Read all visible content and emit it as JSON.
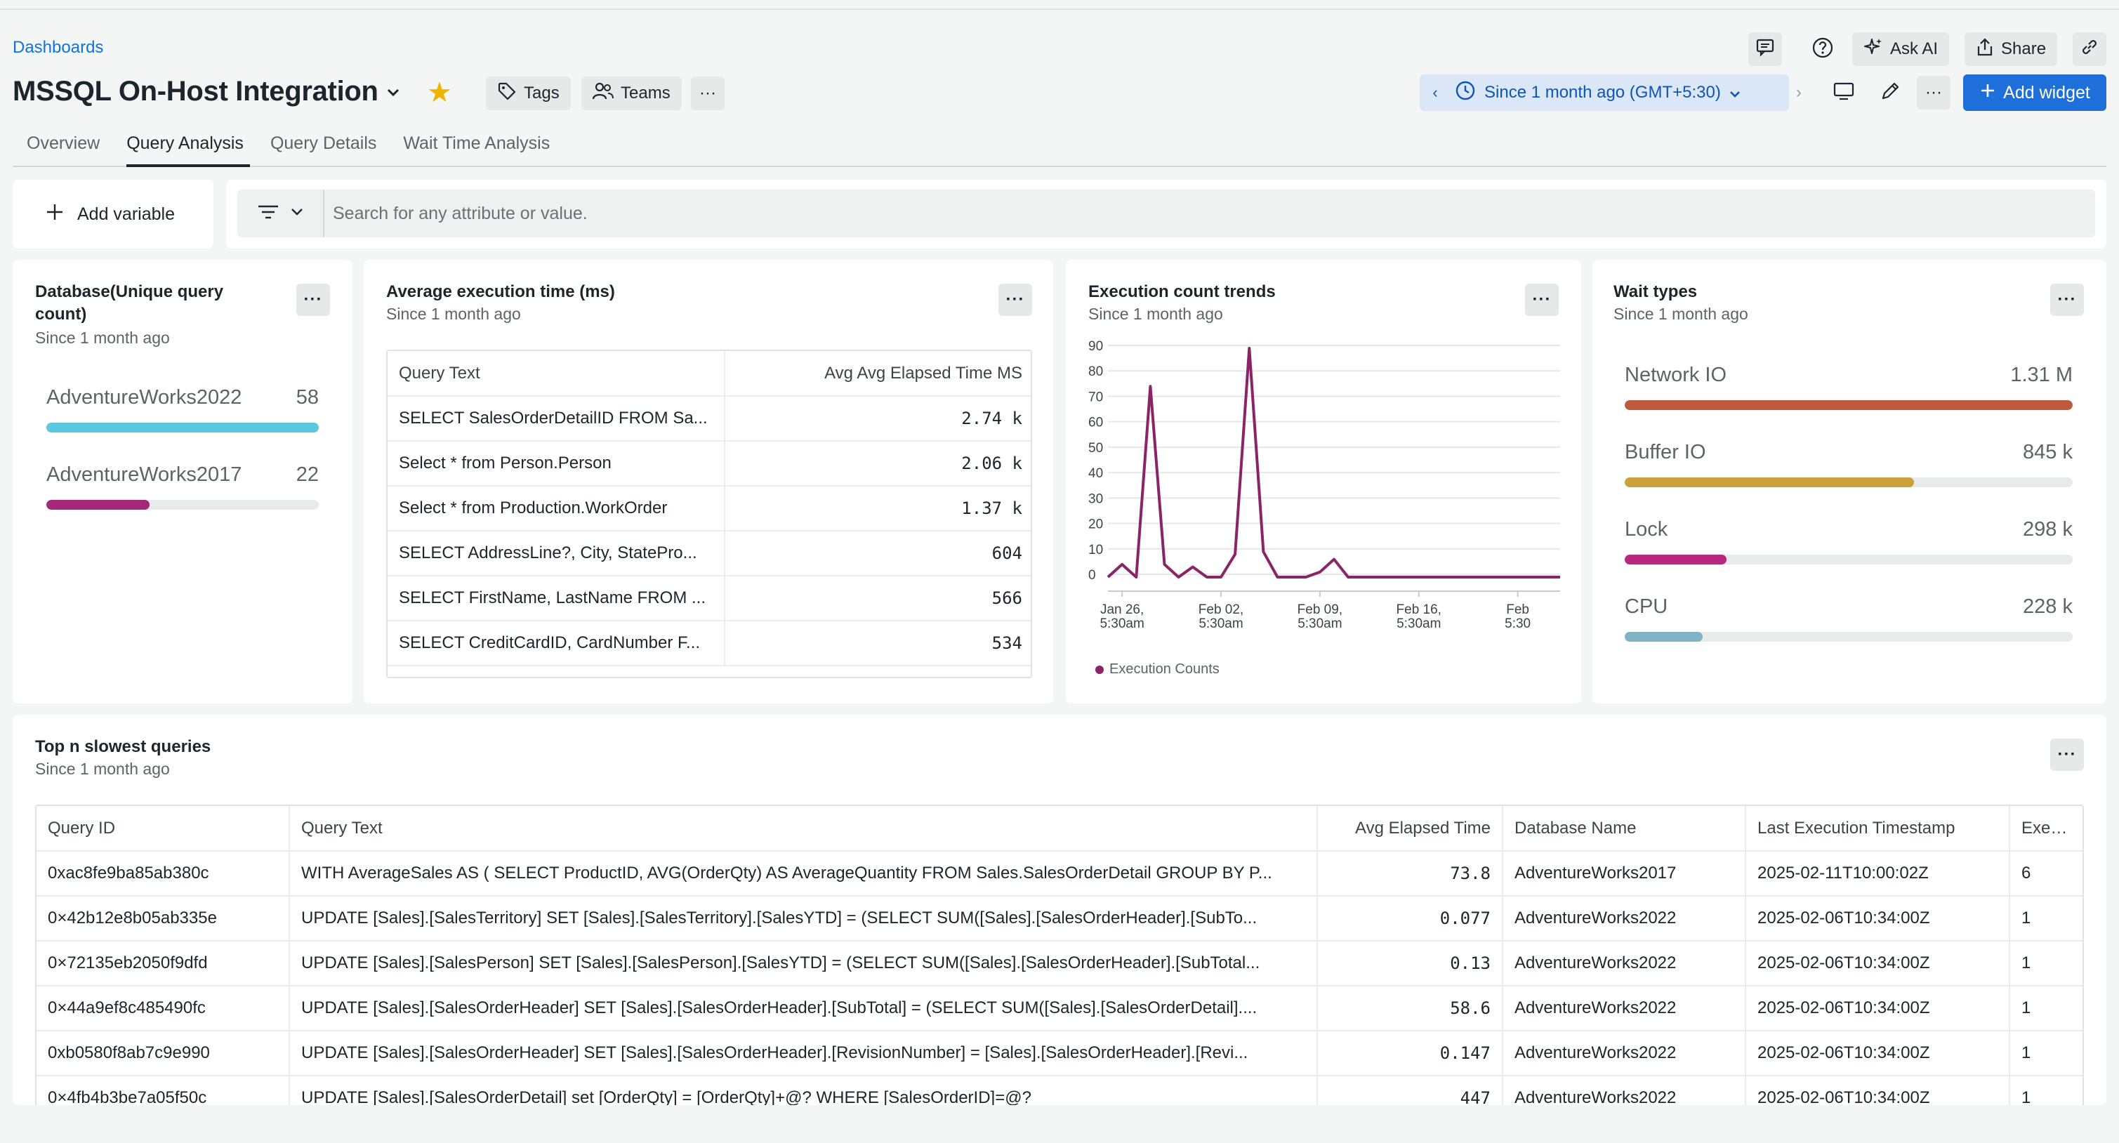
{
  "breadcrumb": "Dashboards",
  "title": "MSSQL On-Host Integration",
  "header_buttons": {
    "tags": "Tags",
    "teams": "Teams",
    "ask_ai": "Ask AI",
    "share": "Share"
  },
  "time_picker": {
    "label": "Since 1 month ago (GMT+5:30)"
  },
  "add_widget": "Add widget",
  "tabs": [
    {
      "label": "Overview"
    },
    {
      "label": "Query Analysis",
      "active": true
    },
    {
      "label": "Query Details"
    },
    {
      "label": "Wait Time Analysis"
    }
  ],
  "add_variable": "Add variable",
  "search": {
    "placeholder": "Search for any attribute or value."
  },
  "colors": {
    "accent": "#1e6fd9",
    "cyan": "#5cc8e0",
    "magenta": "#a3287a",
    "orange": "#c0583d",
    "gold": "#c9a23b",
    "pink": "#b8287e",
    "steel": "#7fb3c5",
    "line": "#8a2467"
  },
  "db_card": {
    "title": "Database(Unique query count)",
    "subtitle": "Since 1 month ago",
    "items": [
      {
        "name": "AdventureWorks2022",
        "value": "58",
        "fraction": 1.0,
        "color": "#5cc8e0"
      },
      {
        "name": "AdventureWorks2017",
        "value": "22",
        "fraction": 0.379,
        "color": "#a3287a"
      }
    ]
  },
  "avg_card": {
    "title": "Average execution time (ms)",
    "subtitle": "Since 1 month ago",
    "columns": [
      "Query Text",
      "Avg Avg Elapsed Time MS"
    ],
    "rows": [
      [
        "SELECT SalesOrderDetailID FROM Sa...",
        "2.74 k"
      ],
      [
        "Select * from Person.Person",
        "2.06 k"
      ],
      [
        "Select * from Production.WorkOrder",
        "1.37 k"
      ],
      [
        "SELECT AddressLine?, City, StatePro...",
        "604"
      ],
      [
        "SELECT FirstName, LastName FROM ...",
        "566"
      ],
      [
        "SELECT CreditCardID, CardNumber F...",
        "534"
      ]
    ]
  },
  "exec_card": {
    "title": "Execution count trends",
    "subtitle": "Since 1 month ago",
    "legend": "Execution Counts"
  },
  "chart_data": {
    "type": "line",
    "ylim": [
      0,
      90
    ],
    "yticks": [
      0,
      10,
      20,
      30,
      40,
      50,
      60,
      70,
      80,
      90
    ],
    "x_ticks": [
      {
        "l1": "Jan 26,",
        "l2": "5:30am",
        "t": 1
      },
      {
        "l1": "Feb 02,",
        "l2": "5:30am",
        "t": 8
      },
      {
        "l1": "Feb 09,",
        "l2": "5:30am",
        "t": 15
      },
      {
        "l1": "Feb 16,",
        "l2": "5:30am",
        "t": 22
      },
      {
        "l1": "Feb",
        "l2": "5:30",
        "t": 29
      }
    ],
    "series": [
      {
        "name": "Execution Counts",
        "x": [
          0,
          1,
          2,
          3,
          4,
          5,
          6,
          7,
          8,
          9,
          10,
          11,
          12,
          13,
          14,
          15,
          16,
          17,
          18,
          19,
          20,
          21,
          22,
          23,
          24,
          25,
          26,
          27,
          28,
          29,
          30,
          31,
          32
        ],
        "y": [
          0,
          5,
          0,
          75,
          5,
          0,
          4,
          0,
          0,
          9,
          90,
          10,
          0,
          0,
          0,
          2,
          7,
          0,
          0,
          0,
          0,
          0,
          0,
          0,
          0,
          0,
          0,
          0,
          0,
          0,
          0,
          0,
          0
        ]
      }
    ]
  },
  "wait_card": {
    "title": "Wait types",
    "subtitle": "Since 1 month ago",
    "items": [
      {
        "name": "Network IO",
        "value": "1.31 M",
        "fraction": 1.0,
        "color": "#c0583d"
      },
      {
        "name": "Buffer IO",
        "value": "845 k",
        "fraction": 0.645,
        "color": "#c9a23b"
      },
      {
        "name": "Lock",
        "value": "298 k",
        "fraction": 0.227,
        "color": "#b8287e"
      },
      {
        "name": "CPU",
        "value": "228 k",
        "fraction": 0.174,
        "color": "#7fb3c5"
      }
    ]
  },
  "slow_card": {
    "title": "Top n slowest queries",
    "subtitle": "Since 1 month ago",
    "columns": [
      "Query ID",
      "Query Text",
      "Avg Elapsed Time",
      "Database Name",
      "Last Execution Timestamp",
      "Executic"
    ],
    "rows": [
      [
        "0xac8fe9ba85ab380c",
        "WITH AverageSales AS ( SELECT ProductID, AVG(OrderQty) AS AverageQuantity FROM Sales.SalesOrderDetail GROUP BY P...",
        "73.8",
        "AdventureWorks2017",
        "2025-02-11T10:00:02Z",
        "6"
      ],
      [
        "0×42b12e8b05ab335e",
        "UPDATE [Sales].[SalesTerritory] SET [Sales].[SalesTerritory].[SalesYTD] = (SELECT SUM([Sales].[SalesOrderHeader].[SubTo...",
        "0.077",
        "AdventureWorks2022",
        "2025-02-06T10:34:00Z",
        "1"
      ],
      [
        "0×72135eb2050f9dfd",
        "UPDATE [Sales].[SalesPerson] SET [Sales].[SalesPerson].[SalesYTD] = (SELECT SUM([Sales].[SalesOrderHeader].[SubTotal...",
        "0.13",
        "AdventureWorks2022",
        "2025-02-06T10:34:00Z",
        "1"
      ],
      [
        "0×44a9ef8c485490fc",
        "UPDATE [Sales].[SalesOrderHeader] SET [Sales].[SalesOrderHeader].[SubTotal] = (SELECT SUM([Sales].[SalesOrderDetail]....",
        "58.6",
        "AdventureWorks2022",
        "2025-02-06T10:34:00Z",
        "1"
      ],
      [
        "0xb0580f8ab7c9e990",
        "UPDATE [Sales].[SalesOrderHeader] SET [Sales].[SalesOrderHeader].[RevisionNumber] = [Sales].[SalesOrderHeader].[Revi...",
        "0.147",
        "AdventureWorks2022",
        "2025-02-06T10:34:00Z",
        "1"
      ],
      [
        "0×4fb4b3be7a05f50c",
        "UPDATE [Sales].[SalesOrderDetail] set [OrderQty] = [OrderQty]+@? WHERE [SalesOrderID]=@?",
        "447",
        "AdventureWorks2022",
        "2025-02-06T10:34:00Z",
        "1"
      ]
    ]
  }
}
